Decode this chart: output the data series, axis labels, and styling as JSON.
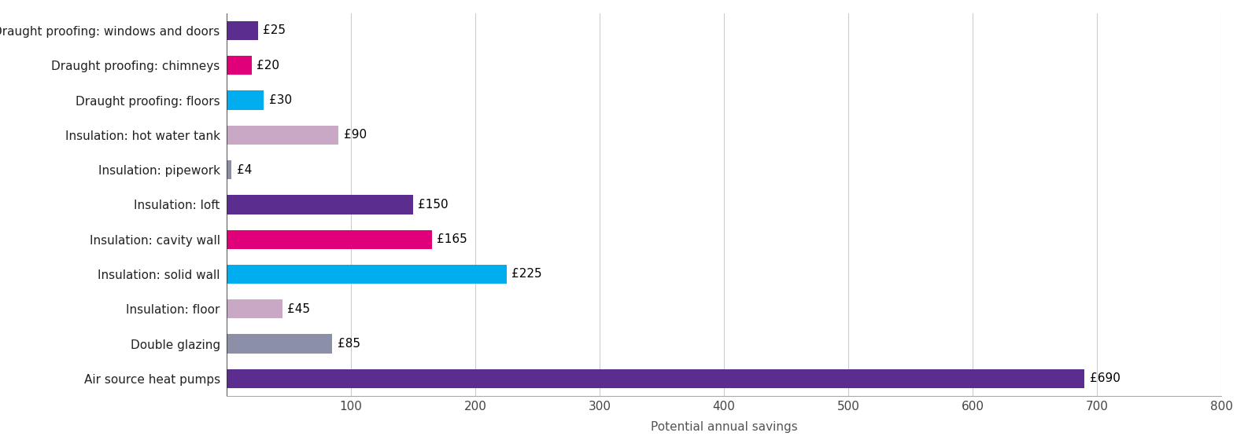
{
  "categories": [
    "Air source heat pumps",
    "Double glazing",
    "Insulation: floor",
    "Insulation: solid wall",
    "Insulation: cavity wall",
    "Insulation: loft",
    "Insulation: pipework",
    "Insulation: hot water tank",
    "Draught proofing: floors",
    "Draught proofing: chimneys",
    "Draught proofing: windows and doors"
  ],
  "values": [
    690,
    85,
    45,
    225,
    165,
    150,
    4,
    90,
    30,
    20,
    25
  ],
  "colors": [
    "#5b2d8e",
    "#8c8fa8",
    "#c9a8c5",
    "#00aeef",
    "#e0007a",
    "#5b2d8e",
    "#8c8fa8",
    "#c9a8c5",
    "#00aeef",
    "#e0007a",
    "#5b2d8e"
  ],
  "labels": [
    "£690",
    "£85",
    "£45",
    "£225",
    "£165",
    "£150",
    "£4",
    "£90",
    "£30",
    "£20",
    "£25"
  ],
  "xlabel": "Potential annual savings",
  "xlim": [
    0,
    800
  ],
  "xticks": [
    100,
    200,
    300,
    400,
    500,
    600,
    700,
    800
  ],
  "background_color": "#ffffff",
  "label_fontsize": 11,
  "tick_fontsize": 11,
  "xlabel_fontsize": 11,
  "ylabel_fontsize": 11,
  "bar_height": 0.55
}
